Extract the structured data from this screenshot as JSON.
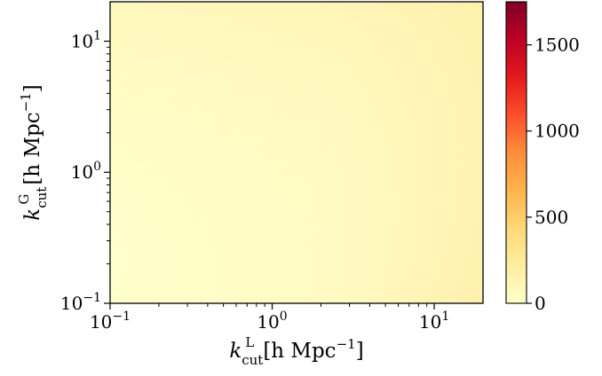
{
  "chart_data": {
    "type": "heatmap",
    "x_scale": "log",
    "y_scale": "log",
    "xlim": [
      0.1,
      20
    ],
    "ylim": [
      0.1,
      20
    ],
    "xlabel": {
      "symbol": "k",
      "sub": "cut",
      "sup": "L",
      "unit": "[h Mpc",
      "unit_exp": "−1",
      "close": "]"
    },
    "ylabel": {
      "symbol": "k",
      "sub": "cut",
      "sup": "G",
      "unit": "[h Mpc",
      "unit_exp": "−1",
      "close": "]"
    },
    "x_ticks": [
      {
        "value": 0.1,
        "base": "10",
        "exp": "−1"
      },
      {
        "value": 1,
        "base": "10",
        "exp": "0"
      },
      {
        "value": 10,
        "base": "10",
        "exp": "1"
      }
    ],
    "y_ticks": [
      {
        "value": 0.1,
        "base": "10",
        "exp": "−1"
      },
      {
        "value": 1,
        "base": "10",
        "exp": "0"
      },
      {
        "value": 10,
        "base": "10",
        "exp": "1"
      }
    ],
    "colorbar": {
      "min": 0,
      "max": 1750,
      "ticks": [
        {
          "value": 0,
          "label": "0"
        },
        {
          "value": 500,
          "label": "500"
        },
        {
          "value": 1000,
          "label": "1000"
        },
        {
          "value": 1500,
          "label": "1500"
        }
      ],
      "colormap": [
        "#ffffcc",
        "#ffeda0",
        "#fed976",
        "#feb24c",
        "#fd8d3c",
        "#fc4e2a",
        "#e31a1c",
        "#bd0026",
        "#800026"
      ]
    },
    "field_description_values": {
      "corner_low_low": 20,
      "corner_high_low": 50,
      "corner_low_high": 40,
      "corner_high_high": 120
    }
  }
}
